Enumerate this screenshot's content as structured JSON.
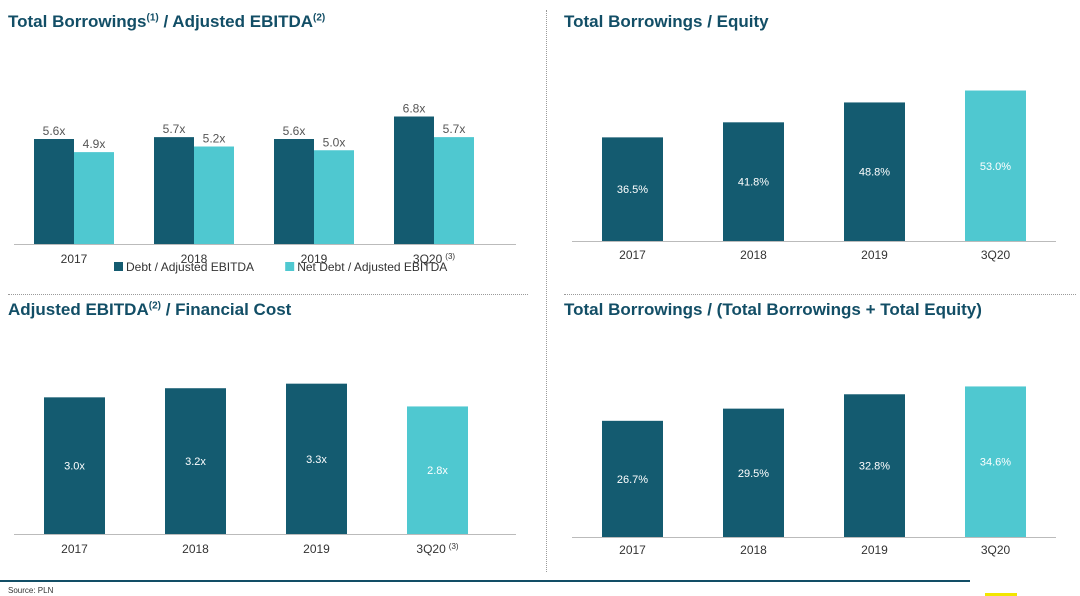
{
  "colors": {
    "title": "#124e66",
    "dark_bar": "#145b70",
    "light_bar": "#4fc8d0",
    "bar_label_inside": "#ffffff",
    "bar_label_outside": "#555555",
    "axis": "#bbbbbb",
    "tick": "#333333"
  },
  "panels": [
    {
      "title": "Total Borrowings",
      "title_sup1": "(1)",
      "title_mid": " / Adjusted EBITDA",
      "title_sup2": "(2)",
      "title_end": ""
    },
    {
      "title": "Total Borrowings / Equity"
    },
    {
      "title": "Adjusted EBITDA",
      "title_sup1": "(2)",
      "title_mid": " / Financial Cost"
    },
    {
      "title": "Total Borrowings / (Total Borrowings + Total Equity)"
    }
  ],
  "chart_data": [
    {
      "type": "bar",
      "title": "Total Borrowings(1) / Adjusted EBITDA(2)",
      "categories": [
        "2017",
        "2018",
        "2019",
        "3Q20"
      ],
      "category_superscripts": [
        "",
        "",
        "",
        "(3)"
      ],
      "series": [
        {
          "name": "Debt / Adjusted EBITDA",
          "values": [
            5.6,
            5.7,
            5.6,
            6.8
          ],
          "labels": [
            "5.6x",
            "5.7x",
            "5.6x",
            "6.8x"
          ],
          "color": "#145b70"
        },
        {
          "name": "Net Debt / Adjusted EBITDA",
          "values": [
            4.9,
            5.2,
            5.0,
            5.7
          ],
          "labels": [
            "4.9x",
            "5.2x",
            "5.0x",
            "5.7x"
          ],
          "color": "#4fc8d0"
        }
      ],
      "ylim": [
        0,
        8
      ],
      "legend": "bottom",
      "grid": false
    },
    {
      "type": "bar",
      "title": "Total Borrowings / Equity",
      "categories": [
        "2017",
        "2018",
        "2019",
        "3Q20"
      ],
      "values": [
        36.5,
        41.8,
        48.8,
        53.0
      ],
      "labels": [
        "36.5%",
        "41.8%",
        "48.8%",
        "53.0%"
      ],
      "bar_colors": [
        "#145b70",
        "#145b70",
        "#145b70",
        "#4fc8d0"
      ],
      "ylim": [
        0,
        56
      ],
      "grid": false
    },
    {
      "type": "bar",
      "title": "Adjusted EBITDA(2) / Financial Cost",
      "categories": [
        "2017",
        "2018",
        "2019",
        "3Q20"
      ],
      "category_superscripts": [
        "",
        "",
        "",
        "(3)"
      ],
      "values": [
        3.0,
        3.2,
        3.3,
        2.8
      ],
      "labels": [
        "3.0x",
        "3.2x",
        "3.3x",
        "2.8x"
      ],
      "bar_colors": [
        "#145b70",
        "#145b70",
        "#145b70",
        "#4fc8d0"
      ],
      "ylim": [
        0,
        3.6
      ],
      "grid": false
    },
    {
      "type": "bar",
      "title": "Total Borrowings / (Total Borrowings + Total Equity)",
      "categories": [
        "2017",
        "2018",
        "2019",
        "3Q20"
      ],
      "values": [
        26.7,
        29.5,
        32.8,
        34.6
      ],
      "labels": [
        "26.7%",
        "29.5%",
        "32.8%",
        "34.6%"
      ],
      "bar_colors": [
        "#145b70",
        "#145b70",
        "#145b70",
        "#4fc8d0"
      ],
      "ylim": [
        0,
        37
      ],
      "grid": false
    }
  ],
  "footer": {
    "source": "Source: PLN"
  }
}
